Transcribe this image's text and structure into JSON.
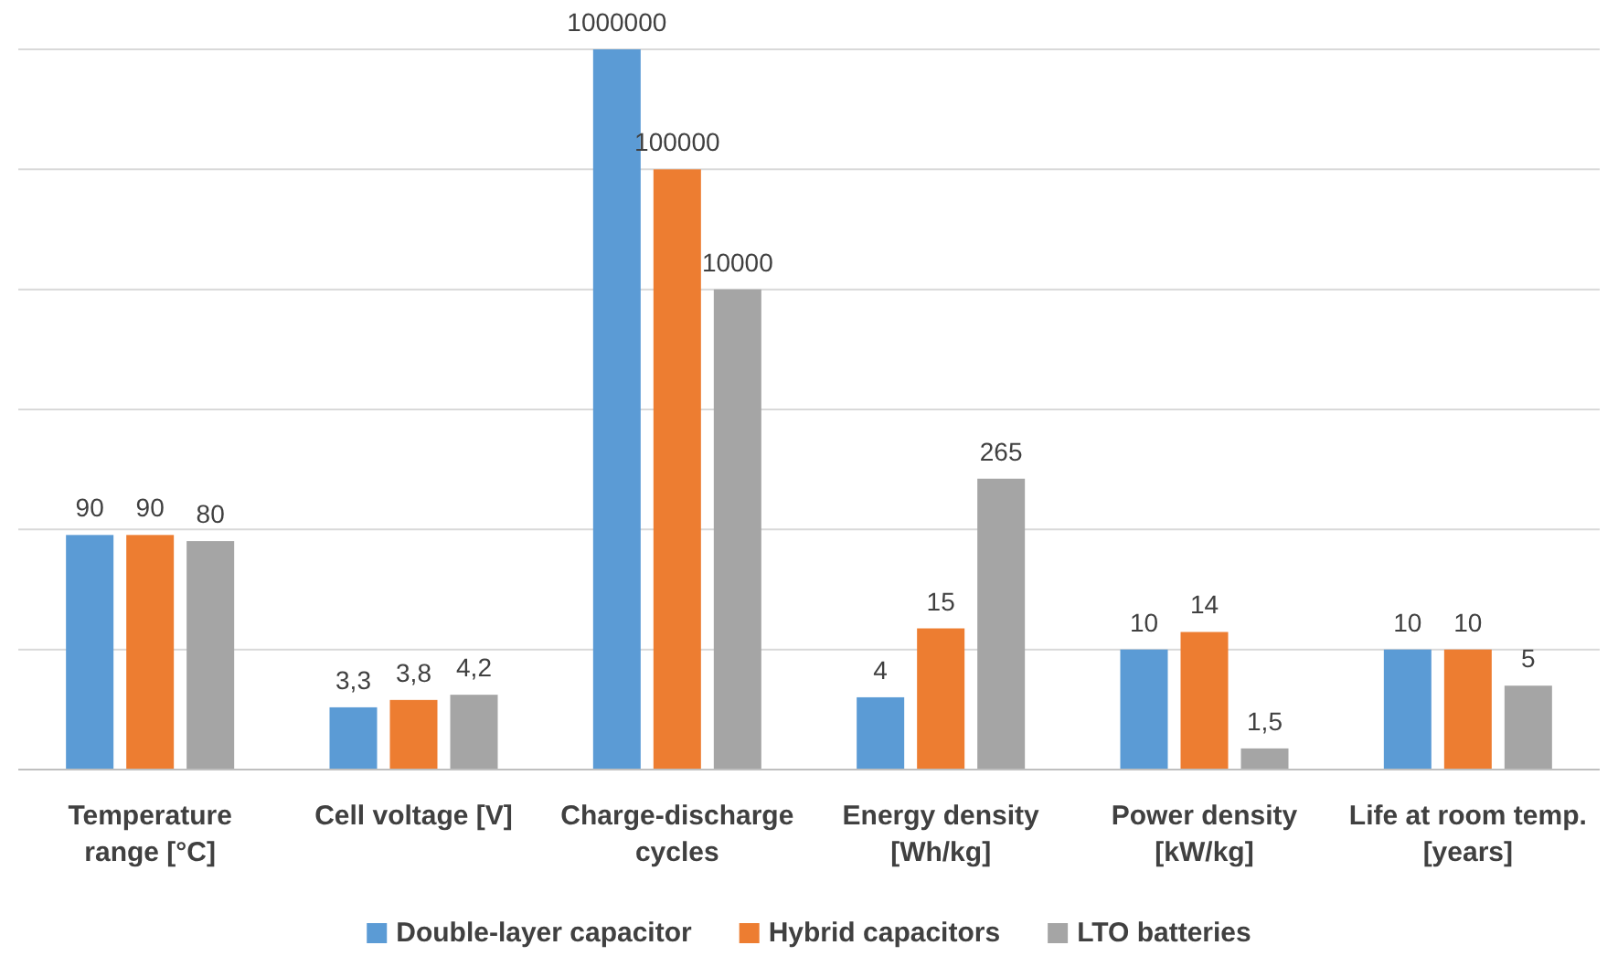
{
  "chart_data": {
    "type": "bar",
    "categories": [
      "Temperature range [°C]",
      "Cell voltage [V]",
      "Charge-discharge cycles",
      "Energy density [Wh/kg]",
      "Power density [kW/kg]",
      "Life at room temp. [years]"
    ],
    "series": [
      {
        "name": "Double-layer capacitor",
        "color": "#5b9bd5",
        "values": [
          90,
          3.3,
          1000000,
          4,
          10,
          10
        ],
        "value_labels": [
          "90",
          "3,3",
          "1000000",
          "4",
          "10",
          "10"
        ]
      },
      {
        "name": "Hybrid capacitors",
        "color": "#ed7d31",
        "values": [
          90,
          3.8,
          100000,
          15,
          14,
          10
        ],
        "value_labels": [
          "90",
          "3,8",
          "100000",
          "15",
          "14",
          "10"
        ]
      },
      {
        "name": "LTO batteries",
        "color": "#a5a5a5",
        "values": [
          80,
          4.2,
          10000,
          265,
          1.5,
          5
        ],
        "value_labels": [
          "80",
          "4,2",
          "10000",
          "265",
          "1,5",
          "5"
        ]
      }
    ],
    "log": true,
    "ylim": [
      1,
      1000000
    ],
    "yticks": [
      {
        "value": 1,
        "label": null
      },
      {
        "value": 10,
        "label": null
      },
      {
        "value": 100,
        "label": null
      },
      {
        "value": 1000,
        "label": null
      },
      {
        "value": 10000,
        "label": null
      },
      {
        "value": 100000,
        "label": null
      },
      {
        "value": 1000000,
        "label": null
      }
    ],
    "grid": "y",
    "tick_labels": "x",
    "legend": "bottom"
  }
}
